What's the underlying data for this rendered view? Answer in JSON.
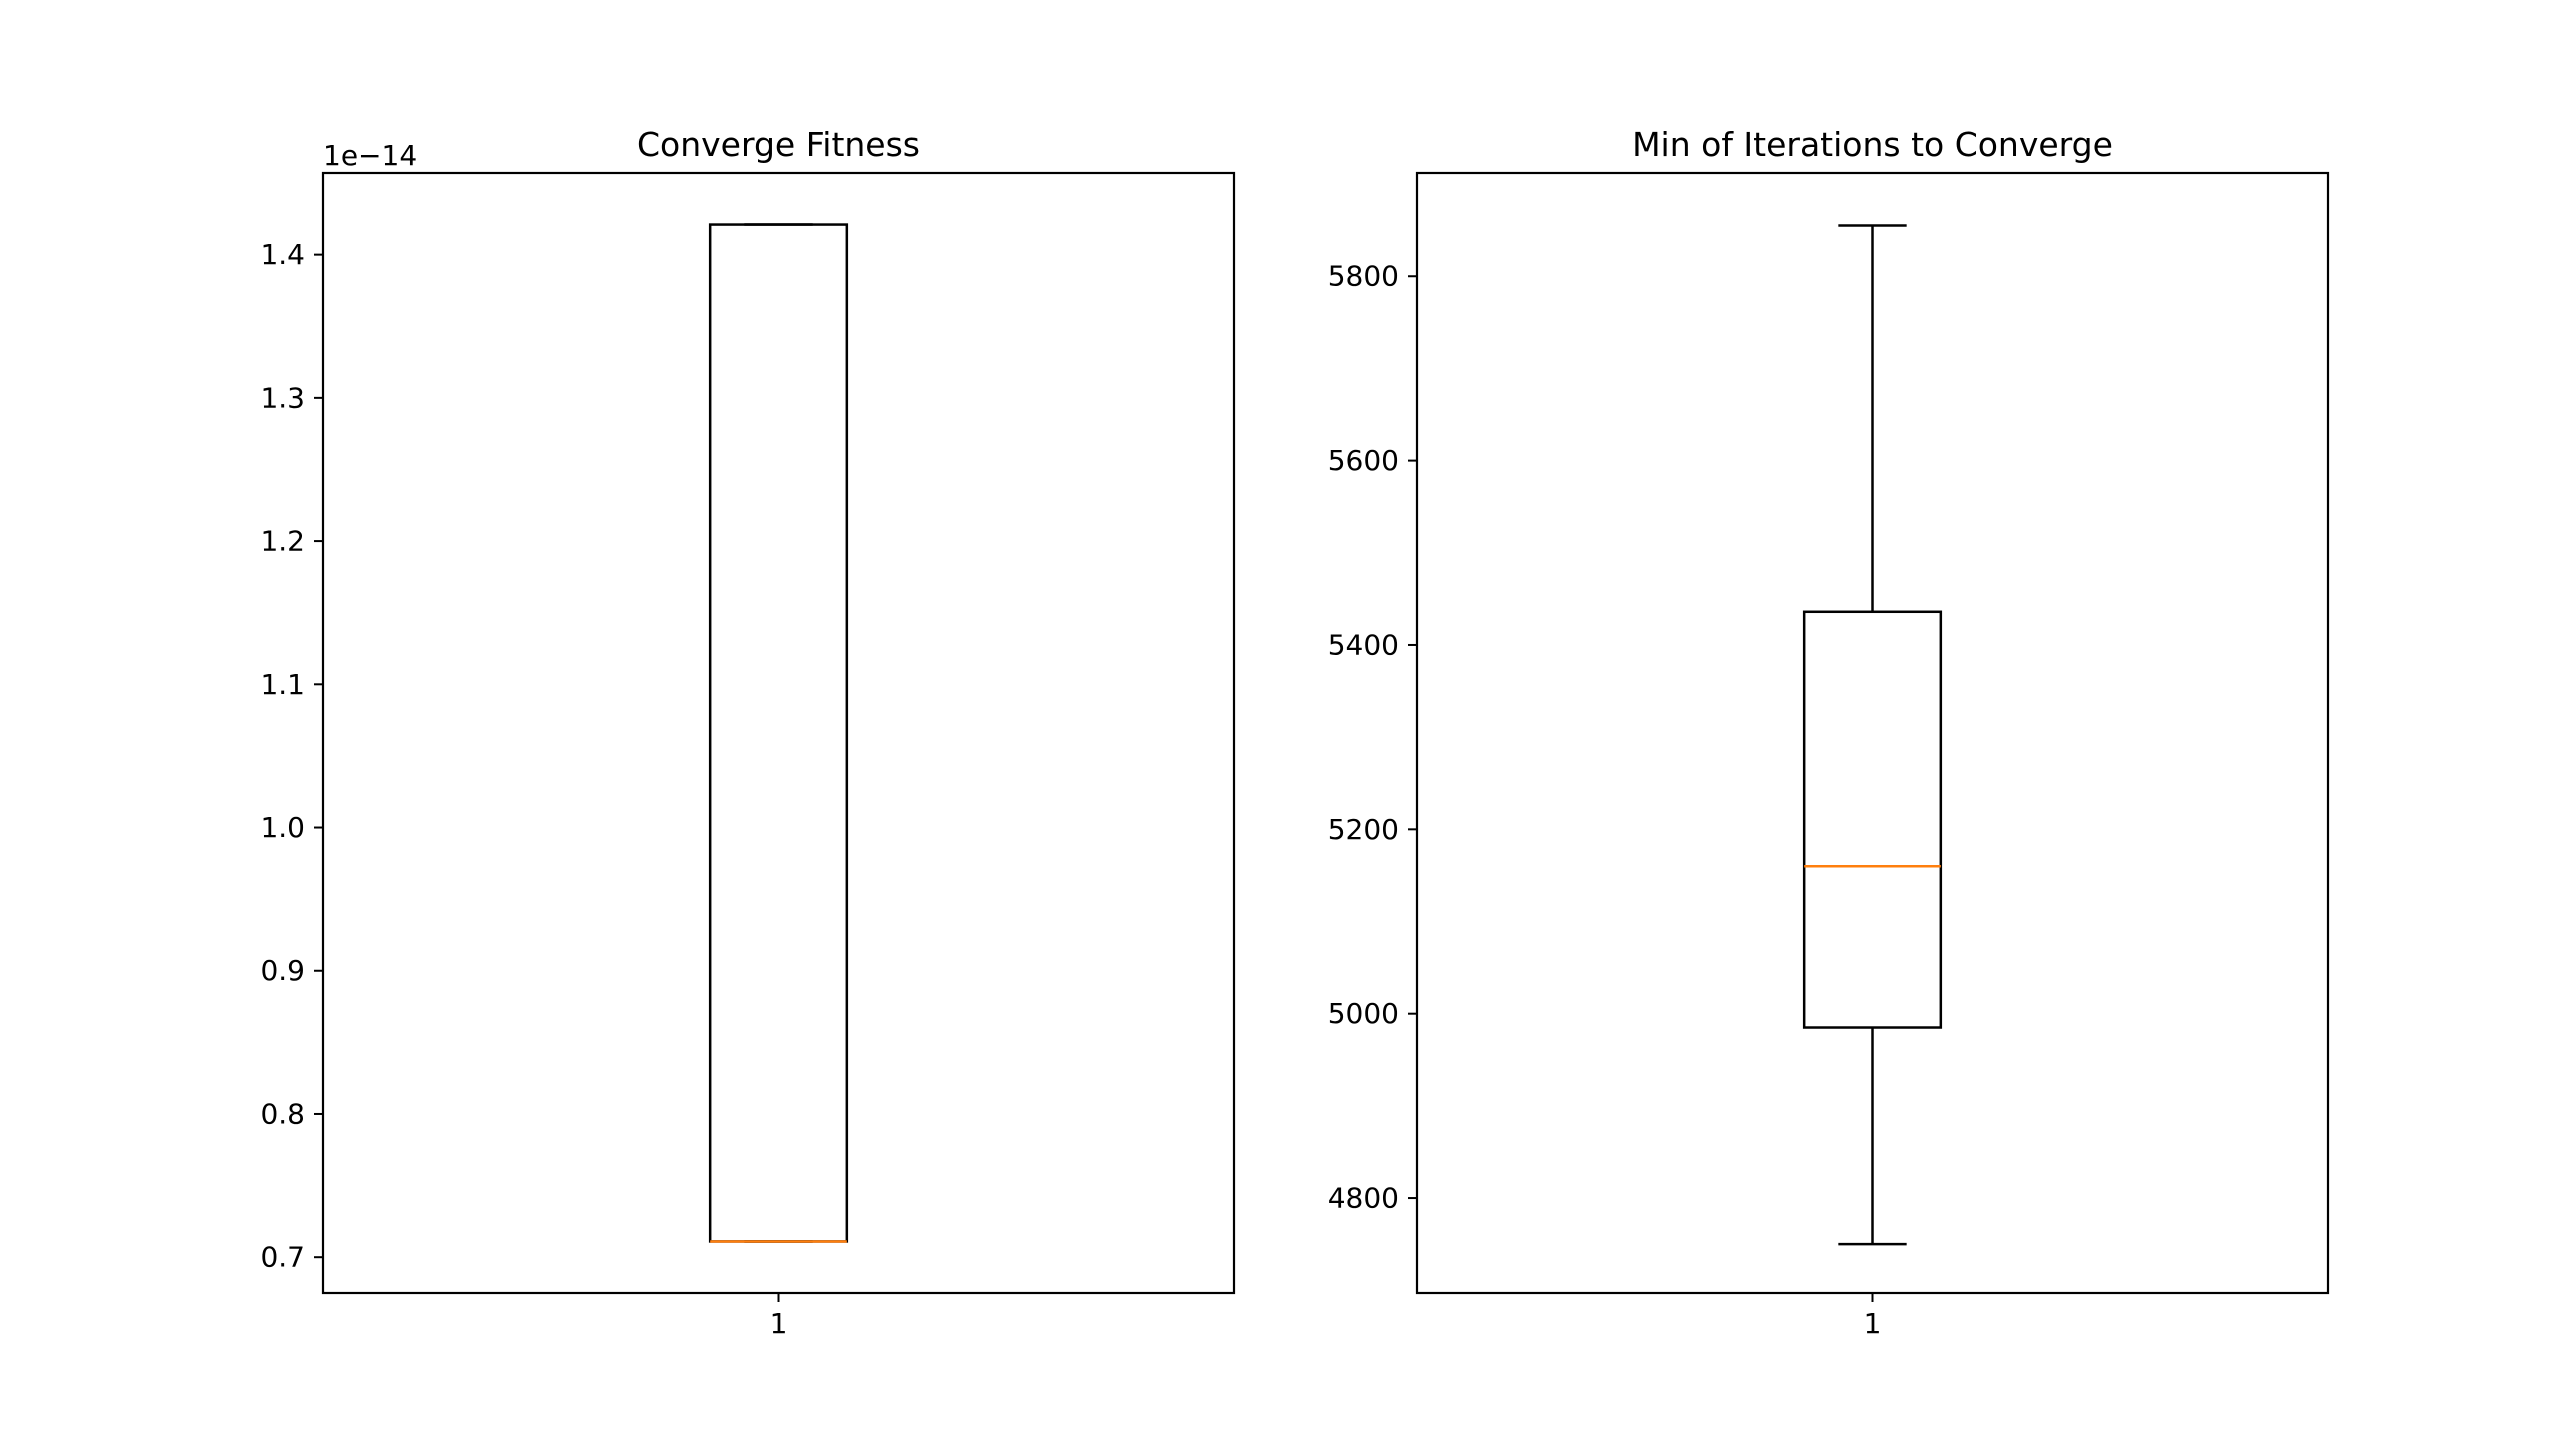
{
  "chart_data": [
    {
      "type": "box",
      "title": "Converge Fitness",
      "xlabel": "",
      "ylabel": "",
      "y_offset_label": "1e−14",
      "categories": [
        "1"
      ],
      "boxes": [
        {
          "category": "1",
          "whisker_low": 0.711,
          "q1": 0.711,
          "median": 0.711,
          "q3": 1.421,
          "whisker_high": 1.421
        }
      ],
      "ylim": [
        0.675,
        1.457
      ],
      "yticks": [
        0.7,
        0.8,
        0.9,
        1.0,
        1.1,
        1.2,
        1.3,
        1.4
      ],
      "ytick_labels": [
        "0.7",
        "0.8",
        "0.9",
        "1.0",
        "1.1",
        "1.2",
        "1.3",
        "1.4"
      ],
      "grid": false,
      "colors": {
        "box": "#000000",
        "median": "#ff7f0e"
      }
    },
    {
      "type": "box",
      "title": "Min of Iterations to Converge",
      "xlabel": "",
      "ylabel": "",
      "y_offset_label": "",
      "categories": [
        "1"
      ],
      "boxes": [
        {
          "category": "1",
          "whisker_low": 4750,
          "q1": 4985,
          "median": 5160,
          "q3": 5436,
          "whisker_high": 5855
        }
      ],
      "ylim": [
        4697,
        5912
      ],
      "yticks": [
        4800,
        5000,
        5200,
        5400,
        5600,
        5800
      ],
      "ytick_labels": [
        "4800",
        "5000",
        "5200",
        "5400",
        "5600",
        "5800"
      ],
      "grid": false,
      "colors": {
        "box": "#000000",
        "median": "#ff7f0e"
      }
    }
  ]
}
